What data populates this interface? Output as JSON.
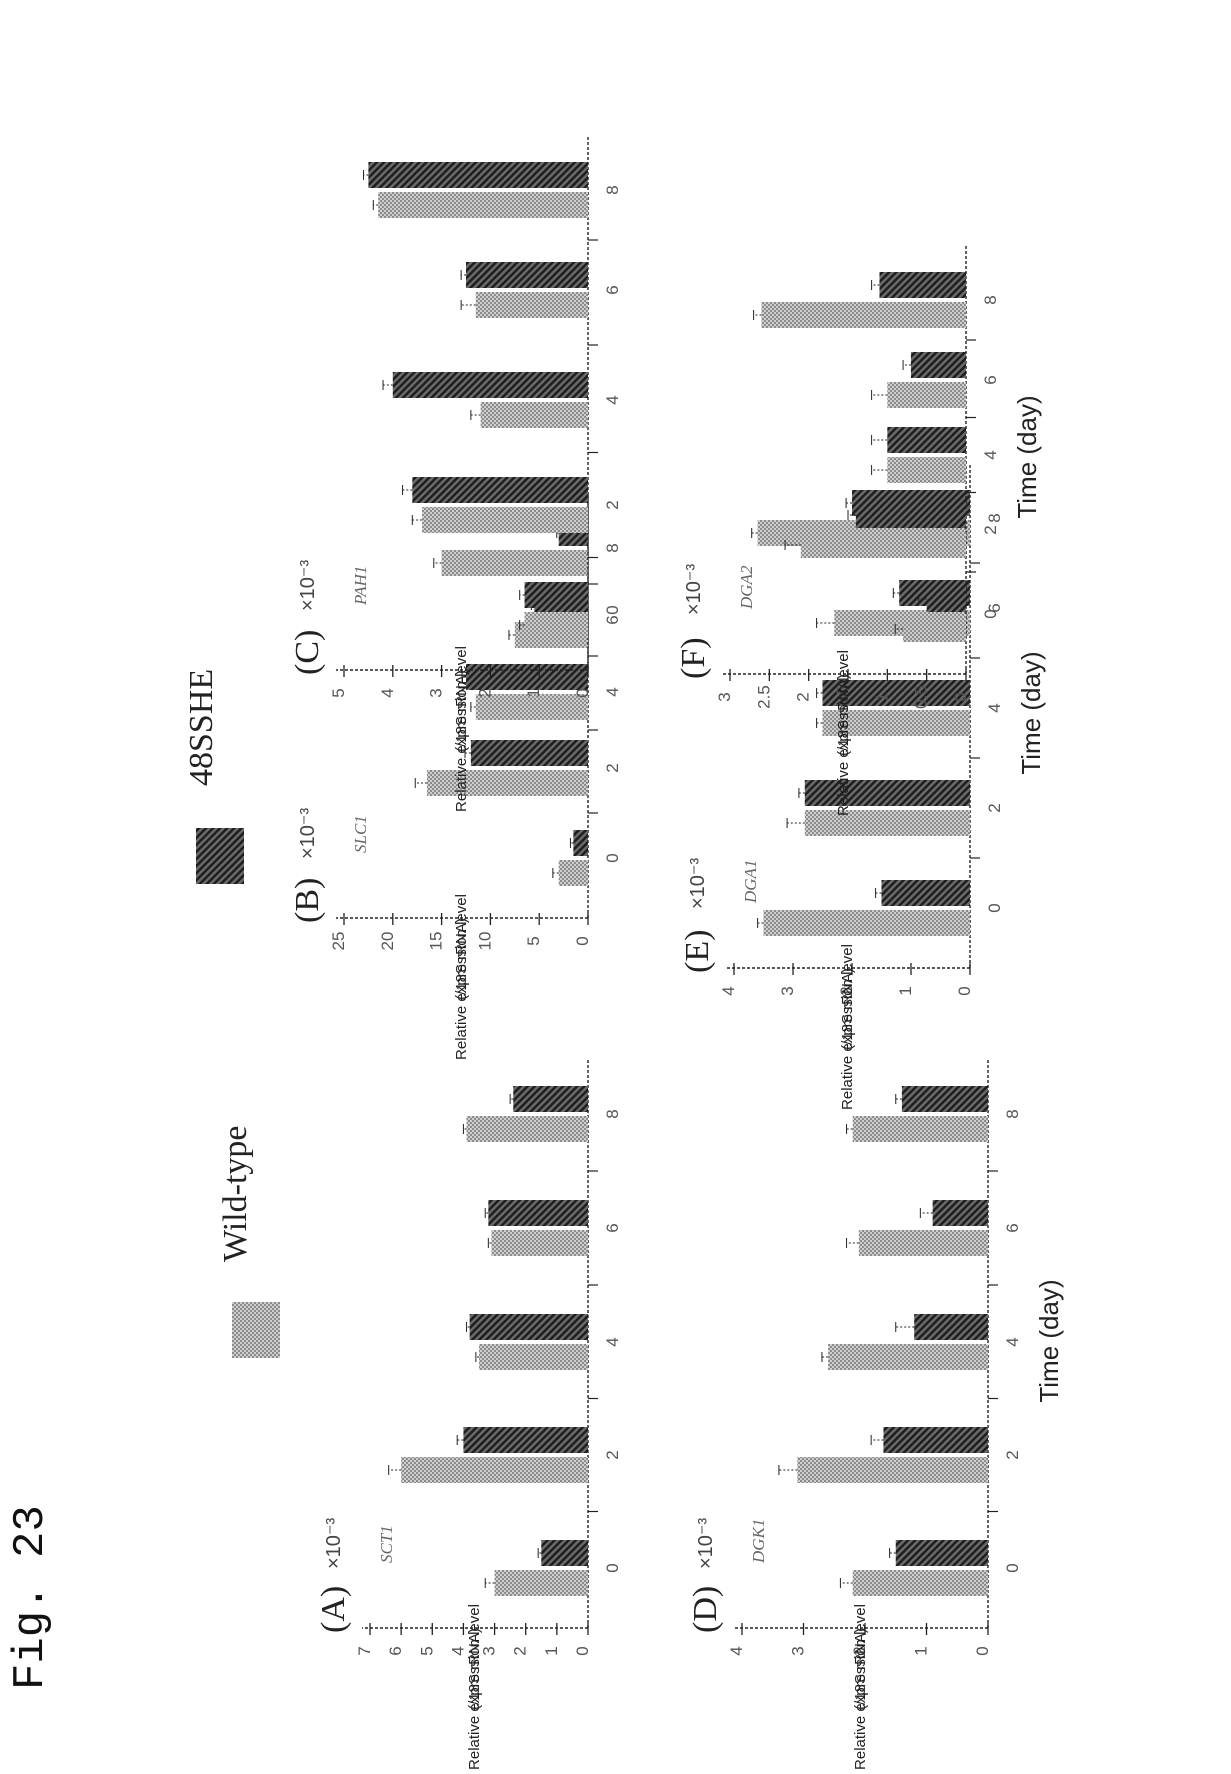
{
  "figure_label": "Fig. 23",
  "legend": [
    {
      "name": "Wild-type",
      "pattern": "light-crosshatch"
    },
    {
      "name": "48SSHE",
      "pattern": "dark-diagonal"
    }
  ],
  "colors": {
    "ink": "#222222",
    "light_fill": "#bdbdbd",
    "dark_fill": "#3a3a3a"
  },
  "chart_data": [
    {
      "type": "bar",
      "panel": "(A)",
      "scale_label": "×10⁻³",
      "gene": "SCT1",
      "ylabel": "Relative expression level",
      "ylabel2": "(/18S rRNA)",
      "xlabel": "",
      "categories": [
        "0",
        "2",
        "4",
        "6",
        "8"
      ],
      "yticks": [
        "0",
        "1",
        "2",
        "3",
        "4",
        "5",
        "6",
        "7"
      ],
      "ylim": [
        0,
        7
      ],
      "series": [
        {
          "name": "Wild-type",
          "values": [
            3.0,
            6.0,
            3.5,
            3.1,
            3.9
          ],
          "errors": [
            0.3,
            0.4,
            0.1,
            0.1,
            0.1
          ]
        },
        {
          "name": "48SSHE",
          "values": [
            1.5,
            4.0,
            3.8,
            3.2,
            2.4
          ],
          "errors": [
            0.1,
            0.2,
            0.1,
            0.1,
            0.1
          ]
        }
      ]
    },
    {
      "type": "bar",
      "panel": "(B)",
      "scale_label": "×10⁻³",
      "gene": "SLC1",
      "ylabel": "Relative expression level",
      "ylabel2": "(/18S rRNA)",
      "xlabel": "",
      "categories": [
        "0",
        "2",
        "4",
        "6",
        "8"
      ],
      "yticks": [
        "0",
        "5",
        "10",
        "15",
        "20",
        "25"
      ],
      "ylim": [
        0,
        25
      ],
      "series": [
        {
          "name": "Wild-type",
          "values": [
            3.0,
            16.5,
            11.5,
            7.5,
            15.0
          ],
          "errors": [
            0.6,
            1.2,
            0.5,
            0.6,
            0.8
          ]
        },
        {
          "name": "48SSHE",
          "values": [
            1.5,
            12.0,
            12.5,
            5.5,
            3.0
          ],
          "errors": [
            0.3,
            0.6,
            0.4,
            0.3,
            0.2
          ]
        }
      ]
    },
    {
      "type": "bar",
      "panel": "(C)",
      "scale_label": "×10⁻³",
      "gene": "PAH1",
      "ylabel": "Relative expression level",
      "ylabel2": "(/18S rRNA)",
      "xlabel": "",
      "categories": [
        "0",
        "2",
        "4",
        "6",
        "8"
      ],
      "yticks": [
        "0",
        "1",
        "2",
        "3",
        "4",
        "5"
      ],
      "ylim": [
        0,
        5
      ],
      "series": [
        {
          "name": "Wild-type",
          "values": [
            1.3,
            3.4,
            2.2,
            2.3,
            4.3
          ],
          "errors": [
            0.1,
            0.2,
            0.2,
            0.3,
            0.1
          ]
        },
        {
          "name": "48SSHE",
          "values": [
            1.3,
            3.6,
            4.0,
            2.5,
            4.5
          ],
          "errors": [
            0.1,
            0.2,
            0.2,
            0.1,
            0.1
          ]
        }
      ]
    },
    {
      "type": "bar",
      "panel": "(D)",
      "scale_label": "×10⁻³",
      "gene": "DGK1",
      "ylabel": "Relative expression level",
      "ylabel2": "(/18S rRNA)",
      "xlabel": "Time (day)",
      "categories": [
        "0",
        "2",
        "4",
        "6",
        "8"
      ],
      "yticks": [
        "0",
        "1",
        "2",
        "3",
        "4"
      ],
      "ylim": [
        0,
        4
      ],
      "series": [
        {
          "name": "Wild-type",
          "values": [
            2.2,
            3.1,
            2.6,
            2.1,
            2.2
          ],
          "errors": [
            0.2,
            0.3,
            0.1,
            0.2,
            0.1
          ]
        },
        {
          "name": "48SSHE",
          "values": [
            1.5,
            1.7,
            1.2,
            0.9,
            1.4
          ],
          "errors": [
            0.1,
            0.2,
            0.3,
            0.2,
            0.1
          ]
        }
      ]
    },
    {
      "type": "bar",
      "panel": "(E)",
      "scale_label": "×10⁻³",
      "gene": "DGA1",
      "ylabel": "Relative expression level",
      "ylabel2": "(/18S rRNA)",
      "xlabel": "Time (day)",
      "categories": [
        "0",
        "2",
        "4",
        "6",
        "8"
      ],
      "yticks": [
        "0",
        "1",
        "2",
        "3",
        "4"
      ],
      "ylim": [
        0,
        4
      ],
      "series": [
        {
          "name": "Wild-type",
          "values": [
            3.5,
            2.8,
            2.5,
            2.3,
            3.6
          ],
          "errors": [
            0.1,
            0.3,
            0.1,
            0.3,
            0.1
          ]
        },
        {
          "name": "48SSHE",
          "values": [
            1.5,
            2.8,
            2.5,
            1.2,
            2.0
          ],
          "errors": [
            0.1,
            0.1,
            0.1,
            0.1,
            0.1
          ]
        }
      ]
    },
    {
      "type": "bar",
      "panel": "(F)",
      "scale_label": "×10⁻³",
      "gene": "DGA2",
      "ylabel": "Relative expression level",
      "ylabel2": "(/18S rRNA)",
      "xlabel": "Time (day)",
      "categories": [
        "0",
        "2",
        "4",
        "6",
        "8"
      ],
      "yticks": [
        "0",
        "0.5",
        "1",
        "1.5",
        "2",
        "2.5",
        "3"
      ],
      "ylim": [
        0,
        3
      ],
      "series": [
        {
          "name": "Wild-type",
          "values": [
            0.8,
            2.1,
            1.0,
            1.0,
            2.6
          ],
          "errors": [
            0.1,
            0.2,
            0.2,
            0.2,
            0.1
          ]
        },
        {
          "name": "48SSHE",
          "values": [
            0.5,
            1.4,
            1.0,
            0.7,
            1.1
          ],
          "errors": [
            0.1,
            0.1,
            0.2,
            0.1,
            0.1
          ]
        }
      ]
    }
  ]
}
